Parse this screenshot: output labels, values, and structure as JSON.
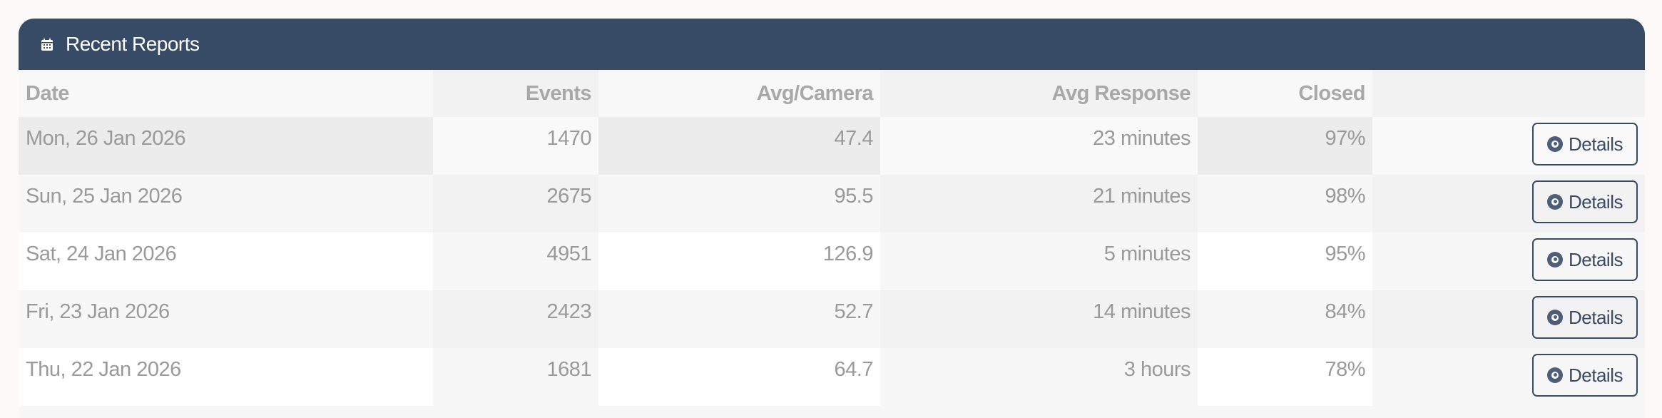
{
  "card": {
    "title": "Recent Reports",
    "icon": "calendar-icon"
  },
  "columns": [
    "Date",
    "Events",
    "Avg/Camera",
    "Avg Response",
    "Closed",
    ""
  ],
  "rows": [
    {
      "date": "Mon, 26 Jan 2026",
      "events": "1470",
      "avg_camera": "47.4",
      "avg_response": "23 minutes",
      "closed": "97%",
      "action": "Details"
    },
    {
      "date": "Sun, 25 Jan 2026",
      "events": "2675",
      "avg_camera": "95.5",
      "avg_response": "21 minutes",
      "closed": "98%",
      "action": "Details"
    },
    {
      "date": "Sat, 24 Jan 2026",
      "events": "4951",
      "avg_camera": "126.9",
      "avg_response": "5 minutes",
      "closed": "95%",
      "action": "Details"
    },
    {
      "date": "Fri, 23 Jan 2026",
      "events": "2423",
      "avg_camera": "52.7",
      "avg_response": "14 minutes",
      "closed": "84%",
      "action": "Details"
    },
    {
      "date": "Thu, 22 Jan 2026",
      "events": "1681",
      "avg_camera": "64.7",
      "avg_response": "3 hours",
      "closed": "78%",
      "action": "Details"
    }
  ],
  "colors": {
    "header": "#374a66",
    "button": "#3a4a66"
  }
}
